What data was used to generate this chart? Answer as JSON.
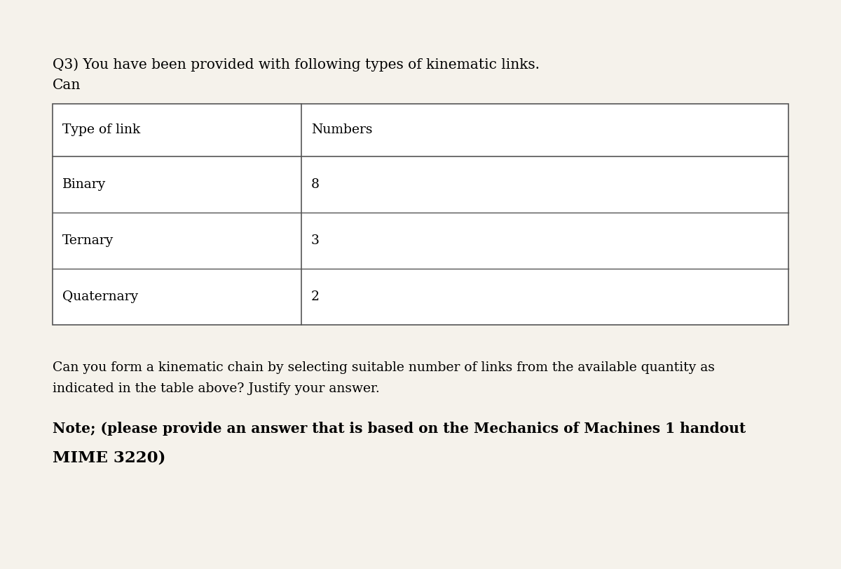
{
  "background_color": "#f5f2eb",
  "title_line1": "Q3) You have been provided with following types of kinematic links.",
  "title_line2": "Can",
  "table_header": [
    "Type of link",
    "Numbers"
  ],
  "table_rows": [
    [
      "Binary",
      "8"
    ],
    [
      "Ternary",
      "3"
    ],
    [
      "Quaternary",
      "2"
    ]
  ],
  "paragraph_line1": "Can you form a kinematic chain by selecting suitable number of links from the available quantity as",
  "paragraph_line2": "indicated in the table above? Justify your answer.",
  "note_line1": "Note; (please provide an answer that is based on the Mechanics of Machines 1 handout",
  "note_line2": "MIME 3220)",
  "font_family": "serif",
  "title_fontsize": 14.5,
  "table_fontsize": 13.5,
  "para_fontsize": 13.5,
  "note_fontsize": 14.5,
  "note2_fontsize": 16.5
}
